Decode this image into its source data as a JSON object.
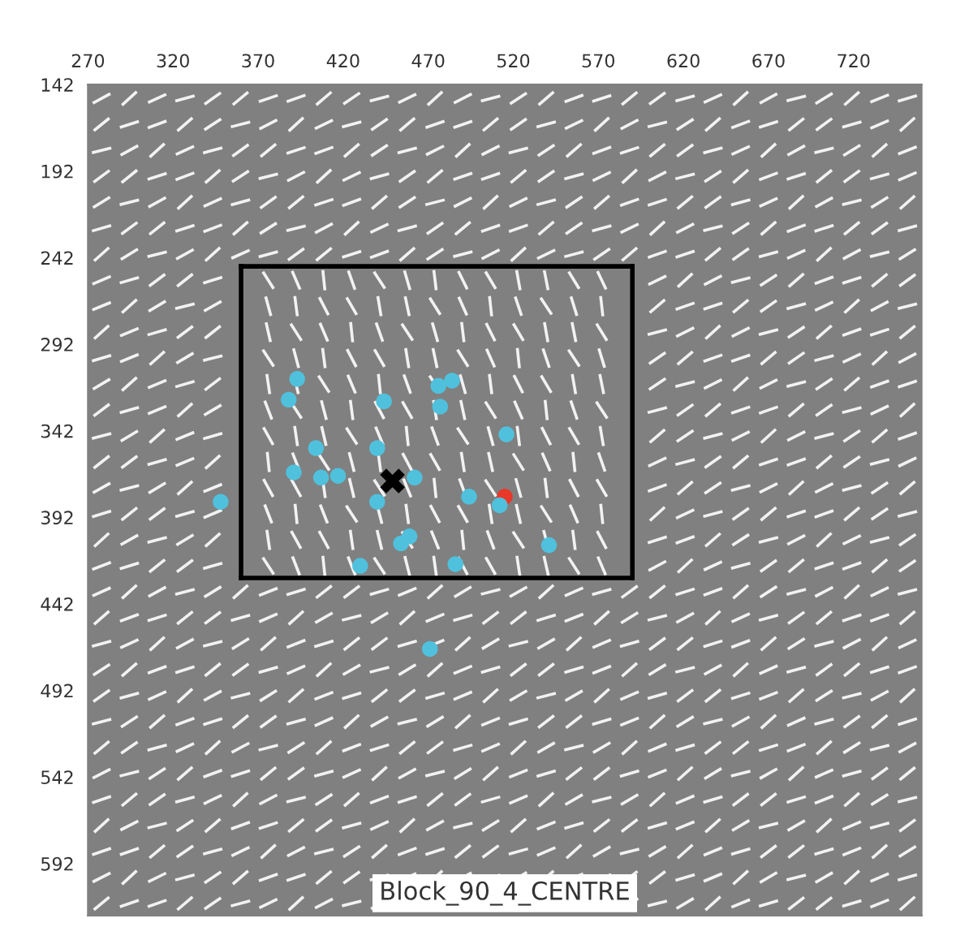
{
  "chart_data": {
    "type": "scatter",
    "xlim": [
      270,
      760
    ],
    "ylim": [
      622,
      142
    ],
    "xticks": [
      270,
      320,
      370,
      420,
      470,
      520,
      570,
      620,
      670,
      720
    ],
    "yticks": [
      142,
      192,
      242,
      292,
      342,
      392,
      442,
      492,
      542,
      592
    ],
    "grid": false,
    "legend": false,
    "annotations": [
      "Block_90_4_CENTRE"
    ],
    "series": [
      {
        "type": "line",
        "color": "#000000",
        "line_style": "solid",
        "x": [
          360,
          590
        ],
        "values": [
          247,
          247
        ]
      },
      {
        "type": "line",
        "color": "#000000",
        "line_style": "solid",
        "x": [
          590,
          590
        ],
        "values": [
          247,
          427
        ]
      },
      {
        "type": "line",
        "color": "#000000",
        "line_style": "solid",
        "x": [
          360,
          590
        ],
        "values": [
          427,
          427
        ]
      },
      {
        "type": "line",
        "color": "#000000",
        "line_style": "solid",
        "x": [
          360,
          360
        ],
        "values": [
          247,
          427
        ]
      },
      {
        "color": "#e8382a",
        "marker": "circle",
        "x": [
          515
        ],
        "values": [
          380
        ]
      },
      {
        "color": "#4fc1dd",
        "marker": "circle",
        "x": [
          393,
          484,
          476,
          388,
          444,
          477,
          516,
          404,
          440,
          391,
          407,
          417,
          462,
          348,
          440,
          494,
          512,
          541,
          459,
          454,
          430,
          486,
          471
        ],
        "values": [
          312,
          313,
          316,
          324,
          325,
          328,
          344,
          352,
          352,
          366,
          369,
          368,
          369,
          383,
          383,
          380,
          385,
          408,
          403,
          407,
          420,
          419,
          468
        ]
      },
      {
        "color": "#000000",
        "marker": "cross",
        "x": [
          449
        ],
        "values": [
          371
        ]
      }
    ]
  }
}
